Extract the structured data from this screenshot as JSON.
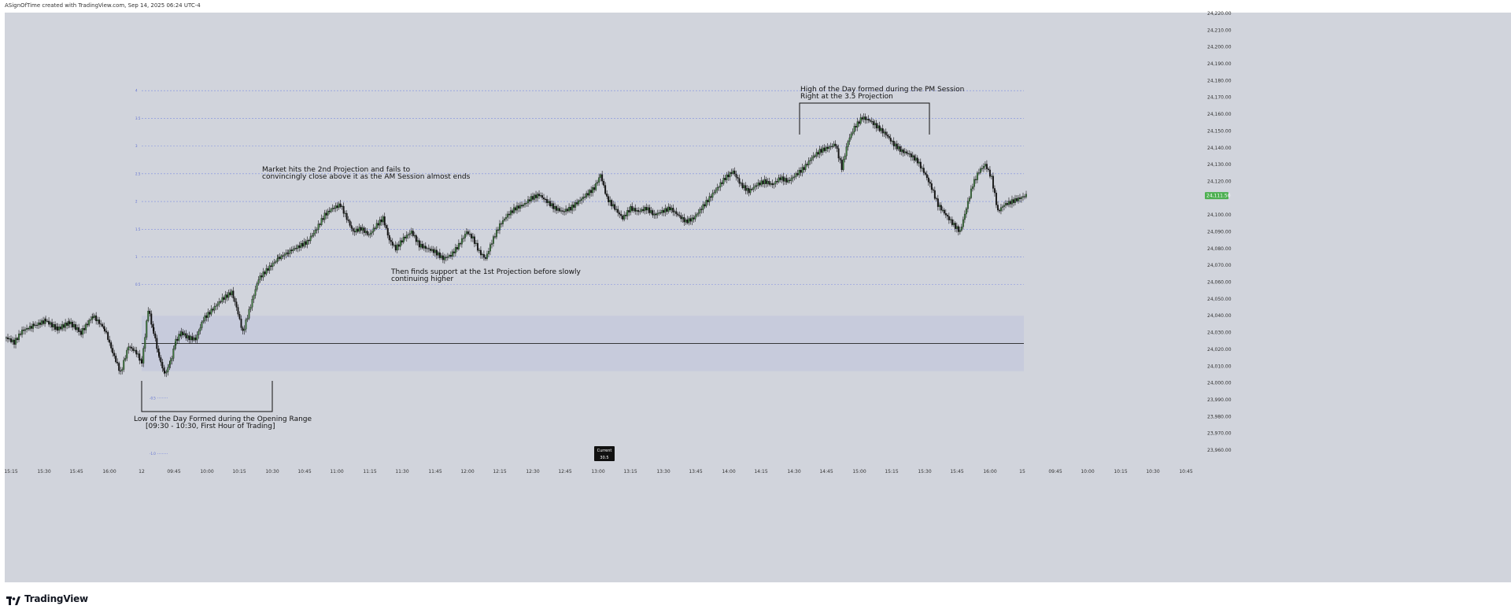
{
  "header": {
    "credit": "ASignOfTime created with TradingView.com, Sep 14, 2025 06:24 UTC-4"
  },
  "footer": {
    "brand": "TradingView",
    "logo_icon": "tradingview-logo-icon"
  },
  "colors": {
    "background": "#d1d4dc",
    "candle_up": "#3d7a3d",
    "candle_down": "#111111",
    "fib_line": "#7f8ee0",
    "range_box": "#c7cbdc",
    "price_badge": "#4caf50"
  },
  "chart_data": {
    "type": "candlestick",
    "ylim": [
      23955,
      24224
    ],
    "y_ticks": [
      24220,
      24210,
      24200,
      24190,
      24180,
      24170,
      24160,
      24150,
      24140,
      24130,
      24120,
      24110,
      24100,
      24090,
      24080,
      24070,
      24060,
      24050,
      24040,
      24030,
      24020,
      24010,
      24000,
      23990,
      23980,
      23970,
      23960
    ],
    "y_tick_labels": [
      "24,220.00",
      "24,210.00",
      "24,200.00",
      "24,190.00",
      "24,180.00",
      "24,170.00",
      "24,160.00",
      "24,150.00",
      "24,140.00",
      "24,130.00",
      "24,120.00",
      "",
      "24,100.00",
      "24,090.00",
      "24,080.00",
      "24,070.00",
      "24,060.00",
      "24,050.00",
      "24,040.00",
      "24,030.00",
      "24,020.00",
      "24,010.00",
      "24,000.00",
      "23,990.00",
      "23,980.00",
      "23,970.00",
      "23,960.00"
    ],
    "x_ticks": [
      "15:15",
      "15:30",
      "15:45",
      "16:00",
      "12",
      "09:45",
      "10:00",
      "10:15",
      "10:30",
      "10:45",
      "11:00",
      "11:15",
      "11:30",
      "11:45",
      "12:00",
      "12:15",
      "12:30",
      "12:45",
      "13:00",
      "13:15",
      "13:30",
      "13:45",
      "14:00",
      "14:15",
      "14:30",
      "14:45",
      "15:00",
      "15:15",
      "15:30",
      "15:45",
      "16:00",
      "15",
      "09:45",
      "10:00",
      "10:15",
      "10:30",
      "10:45"
    ],
    "current_price": 24111.5,
    "current_price_label": "24,111.50",
    "current_box": {
      "title": "Current",
      "value": "30.5"
    },
    "opening_range": {
      "low": 24007,
      "high": 24040,
      "mid": 24023.5
    },
    "projections": [
      {
        "label": "4",
        "price": 24174
      },
      {
        "label": "3.5",
        "price": 24157.5
      },
      {
        "label": "3",
        "price": 24141
      },
      {
        "label": "2.5",
        "price": 24124.5
      },
      {
        "label": "2",
        "price": 24108
      },
      {
        "label": "1.5",
        "price": 24091.5
      },
      {
        "label": "1",
        "price": 24075
      },
      {
        "label": "0.5",
        "price": 24058.5
      },
      {
        "label": "-0.5",
        "price": 23991
      },
      {
        "label": "-1.0",
        "price": 23958
      }
    ],
    "annotations": [
      {
        "lines": [
          "Market hits the 2nd Projection and fails to",
          "convincingly close above it as the AM Session almost ends"
        ]
      },
      {
        "lines": [
          "Then finds support at the 1st Projection before slowly",
          "continuing higher"
        ]
      },
      {
        "lines": [
          "High of the Day formed during the PM Session",
          "Right at the 3.5 Projection"
        ]
      },
      {
        "lines": [
          "Low of the Day Formed during the Opening Range",
          "[09:30 - 10:30, First Hour of Trading]"
        ]
      }
    ],
    "price_path": [
      [
        0,
        24027
      ],
      [
        10,
        24024
      ],
      [
        20,
        24031
      ],
      [
        35,
        24034
      ],
      [
        50,
        24037
      ],
      [
        65,
        24032
      ],
      [
        80,
        24036
      ],
      [
        95,
        24030
      ],
      [
        110,
        24040
      ],
      [
        125,
        24032
      ],
      [
        135,
        24018
      ],
      [
        145,
        24006
      ],
      [
        155,
        24022
      ],
      [
        165,
        24018
      ],
      [
        172,
        24012
      ],
      [
        180,
        24044
      ],
      [
        187,
        24030
      ],
      [
        194,
        24015
      ],
      [
        201,
        24005
      ],
      [
        208,
        24012
      ],
      [
        215,
        24025
      ],
      [
        222,
        24030
      ],
      [
        230,
        24027
      ],
      [
        240,
        24026
      ],
      [
        250,
        24038
      ],
      [
        262,
        24044
      ],
      [
        274,
        24050
      ],
      [
        286,
        24054
      ],
      [
        292,
        24045
      ],
      [
        300,
        24030
      ],
      [
        310,
        24046
      ],
      [
        320,
        24062
      ],
      [
        332,
        24068
      ],
      [
        345,
        24074
      ],
      [
        358,
        24078
      ],
      [
        370,
        24081
      ],
      [
        382,
        24084
      ],
      [
        394,
        24092
      ],
      [
        404,
        24100
      ],
      [
        414,
        24104
      ],
      [
        424,
        24106
      ],
      [
        432,
        24098
      ],
      [
        440,
        24090
      ],
      [
        450,
        24092
      ],
      [
        460,
        24088
      ],
      [
        470,
        24094
      ],
      [
        478,
        24098
      ],
      [
        486,
        24085
      ],
      [
        494,
        24080
      ],
      [
        504,
        24086
      ],
      [
        514,
        24090
      ],
      [
        524,
        24082
      ],
      [
        534,
        24080
      ],
      [
        544,
        24078
      ],
      [
        554,
        24074
      ],
      [
        564,
        24076
      ],
      [
        574,
        24082
      ],
      [
        584,
        24090
      ],
      [
        592,
        24086
      ],
      [
        600,
        24078
      ],
      [
        608,
        24074
      ],
      [
        616,
        24084
      ],
      [
        626,
        24094
      ],
      [
        636,
        24100
      ],
      [
        646,
        24104
      ],
      [
        656,
        24106
      ],
      [
        666,
        24110
      ],
      [
        676,
        24112
      ],
      [
        686,
        24108
      ],
      [
        696,
        24104
      ],
      [
        706,
        24102
      ],
      [
        716,
        24104
      ],
      [
        726,
        24108
      ],
      [
        736,
        24112
      ],
      [
        746,
        24116
      ],
      [
        754,
        24124
      ],
      [
        762,
        24110
      ],
      [
        772,
        24104
      ],
      [
        782,
        24098
      ],
      [
        792,
        24104
      ],
      [
        802,
        24102
      ],
      [
        812,
        24104
      ],
      [
        822,
        24100
      ],
      [
        832,
        24102
      ],
      [
        842,
        24104
      ],
      [
        852,
        24100
      ],
      [
        862,
        24096
      ],
      [
        872,
        24098
      ],
      [
        882,
        24104
      ],
      [
        892,
        24110
      ],
      [
        902,
        24116
      ],
      [
        912,
        24122
      ],
      [
        922,
        24126
      ],
      [
        932,
        24118
      ],
      [
        942,
        24114
      ],
      [
        952,
        24118
      ],
      [
        962,
        24120
      ],
      [
        972,
        24118
      ],
      [
        982,
        24122
      ],
      [
        992,
        24120
      ],
      [
        1002,
        24124
      ],
      [
        1012,
        24128
      ],
      [
        1022,
        24134
      ],
      [
        1032,
        24138
      ],
      [
        1042,
        24140
      ],
      [
        1052,
        24142
      ],
      [
        1060,
        24128
      ],
      [
        1068,
        24144
      ],
      [
        1076,
        24152
      ],
      [
        1086,
        24158
      ],
      [
        1096,
        24156
      ],
      [
        1106,
        24152
      ],
      [
        1116,
        24148
      ],
      [
        1126,
        24142
      ],
      [
        1136,
        24138
      ],
      [
        1146,
        24136
      ],
      [
        1156,
        24132
      ],
      [
        1166,
        24124
      ],
      [
        1174,
        24116
      ],
      [
        1182,
        24106
      ],
      [
        1192,
        24100
      ],
      [
        1202,
        24094
      ],
      [
        1210,
        24090
      ],
      [
        1218,
        24104
      ],
      [
        1226,
        24118
      ],
      [
        1234,
        24126
      ],
      [
        1242,
        24130
      ],
      [
        1250,
        24122
      ],
      [
        1258,
        24102
      ],
      [
        1266,
        24106
      ],
      [
        1276,
        24108
      ],
      [
        1286,
        24110
      ],
      [
        1296,
        24112
      ]
    ]
  }
}
